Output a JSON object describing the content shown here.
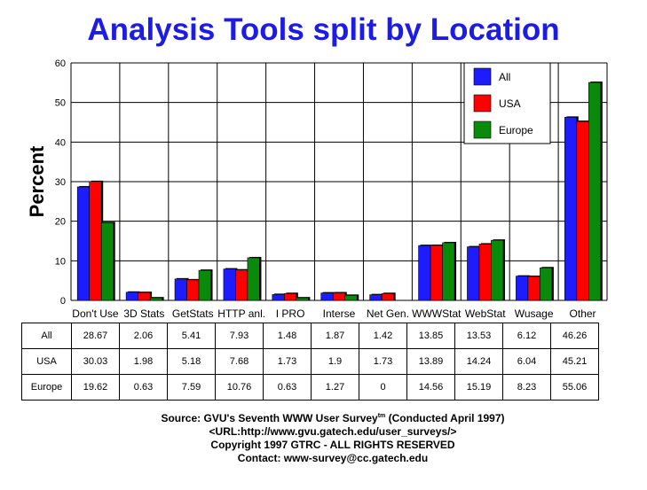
{
  "chart_data": {
    "type": "bar",
    "title": "Analysis Tools split by Location",
    "ylabel": "Percent",
    "xlabel": "",
    "ylim": [
      0,
      60
    ],
    "yticks": [
      0,
      10,
      20,
      30,
      40,
      50,
      60
    ],
    "grid": true,
    "legend_position": "top-right",
    "categories": [
      "Don't Use",
      "3D Stats",
      "GetStats",
      "HTTP anl.",
      "I PRO",
      "Interse",
      "Net Gen.",
      "WWWStat",
      "WebStat",
      "Wusage",
      "Other"
    ],
    "series": [
      {
        "name": "All",
        "color": "#1c1cff",
        "values": [
          28.67,
          2.06,
          5.41,
          7.93,
          1.48,
          1.87,
          1.42,
          13.85,
          13.53,
          6.12,
          46.26
        ]
      },
      {
        "name": "USA",
        "color": "#ff0000",
        "values": [
          30.03,
          1.98,
          5.18,
          7.68,
          1.73,
          1.9,
          1.73,
          13.89,
          14.24,
          6.04,
          45.21
        ]
      },
      {
        "name": "Europe",
        "color": "#0a8a0a",
        "values": [
          19.62,
          0.63,
          7.59,
          10.76,
          0.63,
          1.27,
          0,
          14.56,
          15.19,
          8.23,
          55.06
        ]
      }
    ]
  },
  "source": {
    "line1": "Source: GVU's Seventh WWW User Survey",
    "line1_sup": "tm",
    "line1_tail": " (Conducted April 1997)",
    "line2": "<URL:http://www.gvu.gatech.edu/user_surveys/>",
    "line3": "Copyright 1997 GTRC - ALL RIGHTS RESERVED",
    "line4": "Contact: www-survey@cc.gatech.edu"
  }
}
